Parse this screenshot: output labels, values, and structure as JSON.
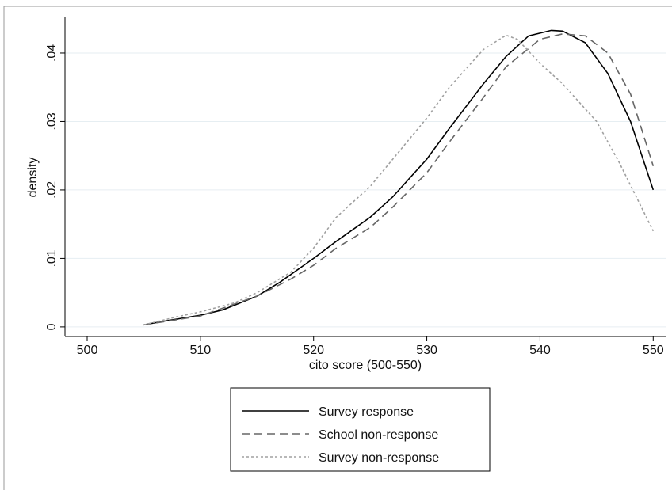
{
  "chart_data": {
    "type": "line",
    "xlabel": "cito score (500-550)",
    "ylabel": "density",
    "xlim": [
      498.04,
      551.1
    ],
    "ylim": [
      -0.0014,
      0.0452
    ],
    "xticks": [
      500,
      510,
      520,
      530,
      540,
      550
    ],
    "yticks": [
      0,
      {
        "value": 0.01,
        "label": ".01"
      },
      {
        "value": 0.02,
        "label": ".02"
      },
      {
        "value": 0.03,
        "label": ".03"
      },
      {
        "value": 0.04,
        "label": ".04"
      }
    ],
    "grid": true,
    "series": [
      {
        "name": "Survey response",
        "color": "#000000",
        "linestyle": "solid",
        "x": [
          505,
          507,
          510,
          512,
          515,
          517,
          520,
          522,
          525,
          527,
          530,
          532,
          535,
          537,
          539,
          541,
          542,
          544,
          546,
          548,
          550
        ],
        "values": [
          0.0003,
          0.0009,
          0.0017,
          0.0025,
          0.0045,
          0.0065,
          0.01,
          0.0125,
          0.016,
          0.019,
          0.0245,
          0.029,
          0.0355,
          0.0395,
          0.0425,
          0.0433,
          0.0432,
          0.0415,
          0.037,
          0.03,
          0.02
        ]
      },
      {
        "name": "School non-response",
        "color": "#666666",
        "linestyle": "dashed",
        "x": [
          505,
          510,
          515,
          518,
          520,
          522,
          525,
          527,
          530,
          532,
          535,
          537,
          540,
          542,
          544,
          546,
          548,
          550
        ],
        "values": [
          0.0003,
          0.0016,
          0.0045,
          0.007,
          0.009,
          0.0115,
          0.0145,
          0.0175,
          0.0225,
          0.027,
          0.0335,
          0.038,
          0.042,
          0.0428,
          0.0425,
          0.04,
          0.034,
          0.0235
        ]
      },
      {
        "name": "Survey non-response",
        "color": "#a0a0a0",
        "linestyle": "dotted",
        "x": [
          505,
          508,
          510,
          513,
          515,
          518,
          520,
          522,
          525,
          527,
          530,
          532,
          535,
          537,
          538,
          540,
          542,
          545,
          547,
          550
        ],
        "values": [
          0.0003,
          0.0015,
          0.0022,
          0.0035,
          0.005,
          0.008,
          0.0115,
          0.016,
          0.0205,
          0.0245,
          0.0305,
          0.035,
          0.0405,
          0.0426,
          0.042,
          0.0385,
          0.0355,
          0.03,
          0.024,
          0.014
        ]
      }
    ]
  }
}
